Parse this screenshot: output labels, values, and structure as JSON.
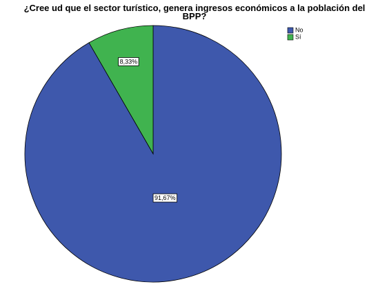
{
  "chart_data": {
    "type": "pie",
    "title": "¿Cree ud que el sector turístico, genera ingresos económicos a la población del BPP?",
    "categories": [
      "No",
      "Sí"
    ],
    "values": [
      91.67,
      8.33
    ],
    "value_labels": [
      "91,67%",
      "8,33%"
    ],
    "colors": [
      "#3e58ac",
      "#40b34f"
    ],
    "legend": "top-right"
  }
}
